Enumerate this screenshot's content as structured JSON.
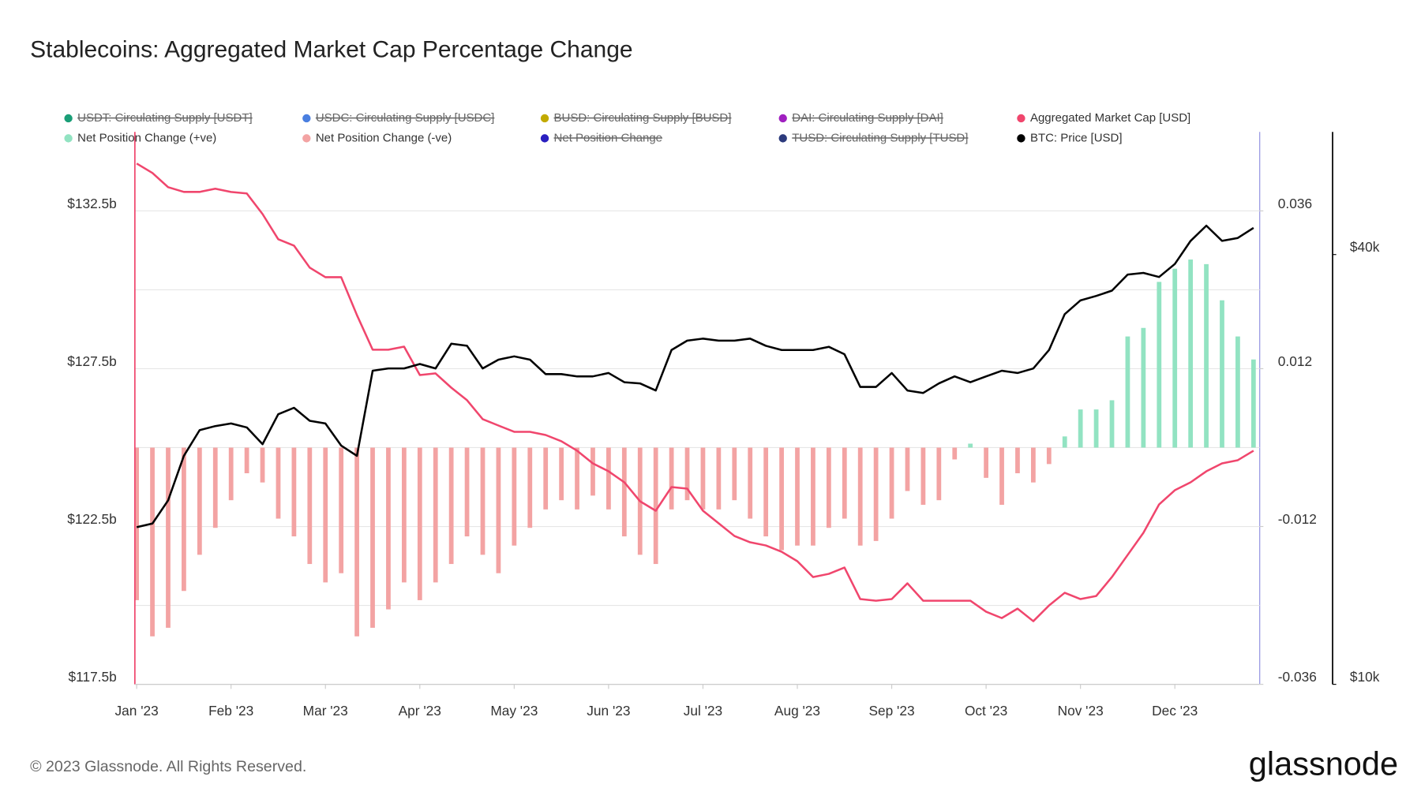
{
  "chart_data": {
    "type": "combo",
    "title": "Stablecoins: Aggregated Market Cap Percentage Change",
    "footer": "© 2023 Glassnode. All Rights Reserved.",
    "brand": "glassnode",
    "categories": [
      "Jan '23",
      null,
      null,
      null,
      null,
      null,
      "Feb '23",
      null,
      null,
      null,
      null,
      null,
      "Mar '23",
      null,
      null,
      null,
      null,
      null,
      "Apr '23",
      null,
      null,
      null,
      null,
      null,
      "May '23",
      null,
      null,
      null,
      null,
      null,
      "Jun '23",
      null,
      null,
      null,
      null,
      null,
      "Jul '23",
      null,
      null,
      null,
      null,
      null,
      "Aug '23",
      null,
      null,
      null,
      null,
      null,
      "Sep '23",
      null,
      null,
      null,
      null,
      null,
      "Oct '23",
      null,
      null,
      null,
      null,
      null,
      "Nov '23",
      null,
      null,
      null,
      null,
      null,
      "Dec '23",
      null,
      null,
      null,
      null,
      null
    ],
    "ylim": [
      117.5,
      135
    ],
    "yticks": [
      {
        "value": 117.5,
        "label": "$117.5b"
      },
      {
        "value": 122.5,
        "label": "$122.5b"
      },
      {
        "value": 127.5,
        "label": "$127.5b"
      },
      {
        "value": 132.5,
        "label": "$132.5b"
      }
    ],
    "minor_grid": [
      120,
      125,
      130
    ],
    "y2lim": [
      -0.036,
      0.048
    ],
    "y2ticks": [
      -0.036,
      -0.012,
      0.012,
      0.036
    ],
    "y3lim": [
      10000,
      59400
    ],
    "y3ticks": [
      {
        "value": 10000,
        "label": "$10k"
      },
      {
        "value": 40000,
        "label": "$40k"
      }
    ],
    "y3scale": "log",
    "grid": true,
    "series": [
      {
        "name": "USDT: Circulating Supply [USDT]",
        "color": "#1a9e77",
        "hidden": true
      },
      {
        "name": "USDC: Circulating Supply [USDC]",
        "color": "#4a7fe0",
        "hidden": true
      },
      {
        "name": "BUSD: Circulating Supply [BUSD]",
        "color": "#c2aa00",
        "hidden": true
      },
      {
        "name": "DAI: Circulating Supply [DAI]",
        "color": "#a020c0",
        "hidden": true
      },
      {
        "name": "Aggregated Market Cap [USD]",
        "color": "#f0466d",
        "type": "line",
        "axis": "y",
        "values": [
          134.0,
          133.7,
          133.25,
          133.1,
          133.1,
          133.2,
          133.1,
          133.05,
          132.4,
          131.6,
          131.4,
          130.7,
          130.4,
          130.4,
          129.2,
          128.1,
          128.1,
          128.2,
          127.3,
          127.35,
          126.9,
          126.5,
          125.9,
          125.7,
          125.5,
          125.5,
          125.4,
          125.2,
          124.9,
          124.5,
          124.25,
          123.9,
          123.3,
          123.0,
          123.75,
          123.7,
          123.0,
          122.6,
          122.2,
          122.0,
          121.9,
          121.7,
          121.4,
          120.9,
          121.0,
          121.2,
          120.2,
          120.15,
          120.2,
          120.7,
          120.15,
          120.15,
          120.15,
          120.15,
          119.8,
          119.6,
          119.9,
          119.5,
          120.0,
          120.4,
          120.2,
          120.3,
          120.9,
          121.6,
          122.3,
          123.2,
          123.65,
          123.9,
          124.25,
          124.5,
          124.6,
          124.9
        ]
      },
      {
        "name": "Net Position Change (+ve)",
        "color": "#92e3c2",
        "type": "bar",
        "axis": "y2",
        "values": [
          null,
          null,
          null,
          null,
          null,
          null,
          null,
          null,
          null,
          null,
          null,
          null,
          null,
          null,
          null,
          null,
          null,
          null,
          null,
          null,
          null,
          null,
          null,
          null,
          null,
          null,
          null,
          null,
          null,
          null,
          null,
          null,
          null,
          null,
          null,
          null,
          null,
          null,
          null,
          null,
          null,
          null,
          null,
          null,
          null,
          null,
          null,
          null,
          null,
          null,
          null,
          null,
          null,
          0.0006,
          null,
          null,
          null,
          null,
          null,
          0.0017,
          0.0058,
          0.0058,
          0.0072,
          0.0169,
          0.0182,
          0.0252,
          0.0272,
          0.0286,
          0.0279,
          0.0224,
          0.0169,
          0.0134
        ]
      },
      {
        "name": "Net Position Change (-ve)",
        "color": "#f3a3a3",
        "type": "bar",
        "axis": "y2",
        "values": [
          -0.0232,
          -0.0287,
          -0.0274,
          -0.0218,
          -0.0163,
          -0.0122,
          -0.008,
          -0.0039,
          -0.0053,
          -0.0108,
          -0.0135,
          -0.0177,
          -0.0205,
          -0.0191,
          -0.0287,
          -0.0274,
          -0.0246,
          -0.0205,
          -0.0232,
          -0.0205,
          -0.0177,
          -0.0135,
          -0.0163,
          -0.0191,
          -0.0149,
          -0.0122,
          -0.0094,
          -0.008,
          -0.0094,
          -0.0073,
          -0.0094,
          -0.0135,
          -0.0163,
          -0.0177,
          -0.0094,
          -0.008,
          -0.0094,
          -0.0094,
          -0.008,
          -0.0108,
          -0.0135,
          -0.0156,
          -0.0149,
          -0.0149,
          -0.0122,
          -0.0108,
          -0.0149,
          -0.0142,
          -0.0108,
          -0.0066,
          -0.0087,
          -0.008,
          -0.0018,
          null,
          -0.0046,
          -0.0087,
          -0.0039,
          -0.0053,
          -0.0025,
          null,
          null,
          null,
          null,
          null,
          null,
          null,
          null,
          null,
          null,
          null,
          null,
          null
        ]
      },
      {
        "name": "Net Position Change",
        "color": "#2a1fc0",
        "hidden": true
      },
      {
        "name": "TUSD: Circulating Supply [TUSD]",
        "color": "#2c3a7c",
        "hidden": true
      },
      {
        "name": "BTC: Price [USD]",
        "color": "#000000",
        "type": "line",
        "axis": "y3",
        "values": [
          16600,
          16800,
          18100,
          20900,
          22700,
          23000,
          23200,
          22900,
          21700,
          23900,
          24400,
          23400,
          23200,
          21600,
          20900,
          27500,
          27700,
          27700,
          28100,
          27700,
          30000,
          29800,
          27700,
          28500,
          28800,
          28500,
          27200,
          27200,
          27000,
          27000,
          27300,
          26500,
          26400,
          25800,
          29400,
          30300,
          30500,
          30300,
          30300,
          30500,
          29800,
          29400,
          29400,
          29400,
          29700,
          29000,
          26100,
          26100,
          27300,
          25800,
          25600,
          26400,
          27000,
          26500,
          27000,
          27500,
          27300,
          27700,
          29400,
          33000,
          34500,
          35000,
          35600,
          37500,
          37700,
          37200,
          38800,
          41800,
          43900,
          41800,
          42200,
          43600
        ]
      }
    ]
  }
}
